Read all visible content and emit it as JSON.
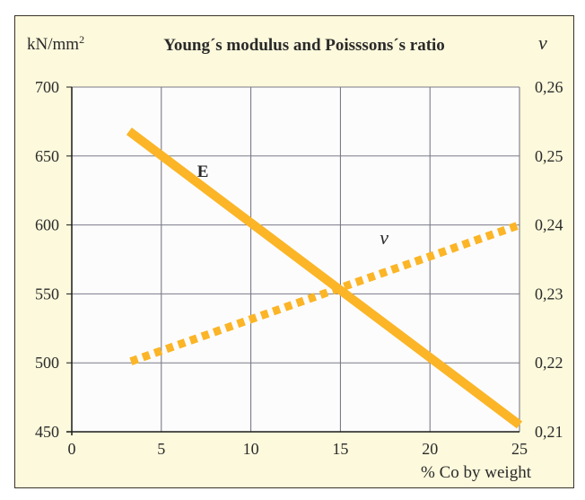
{
  "chart_data": {
    "type": "line",
    "title": "Young´s modulus and Poisssons´s ratio",
    "xlabel": "% Co by weight",
    "ylabel_left": "kN/mm",
    "ylabel_left_superscript": "2",
    "ylabel_right": "ν",
    "xlim": [
      0,
      25
    ],
    "ylim_left": [
      450,
      700
    ],
    "ylim_right": [
      0.21,
      0.26
    ],
    "grid": true,
    "x_ticks": [
      0,
      5,
      10,
      15,
      20,
      25
    ],
    "x_tick_labels": [
      "0",
      "5",
      "10",
      "15",
      "20",
      "25"
    ],
    "y_left_ticks": [
      450,
      500,
      550,
      600,
      650,
      700
    ],
    "y_left_tick_labels": [
      "450",
      "500",
      "550",
      "600",
      "650",
      "700"
    ],
    "y_right_ticks": [
      0.21,
      0.22,
      0.23,
      0.24,
      0.25,
      0.26
    ],
    "y_right_tick_labels": [
      "0,21",
      "0,22",
      "0,23",
      "0,24",
      "0,25",
      "0,26"
    ],
    "series": [
      {
        "name": "E",
        "label": "E",
        "axis": "left",
        "style": "solid",
        "color": "#fbb526",
        "x": [
          3.2,
          25
        ],
        "y": [
          668,
          455
        ],
        "label_at": [
          7,
          635
        ]
      },
      {
        "name": "nu",
        "label": "ν",
        "axis": "right",
        "style": "dotted",
        "color": "#fbb526",
        "x": [
          3.3,
          25
        ],
        "y": [
          0.2202,
          0.24
        ],
        "label_at": [
          17.2,
          0.2372
        ]
      }
    ]
  }
}
